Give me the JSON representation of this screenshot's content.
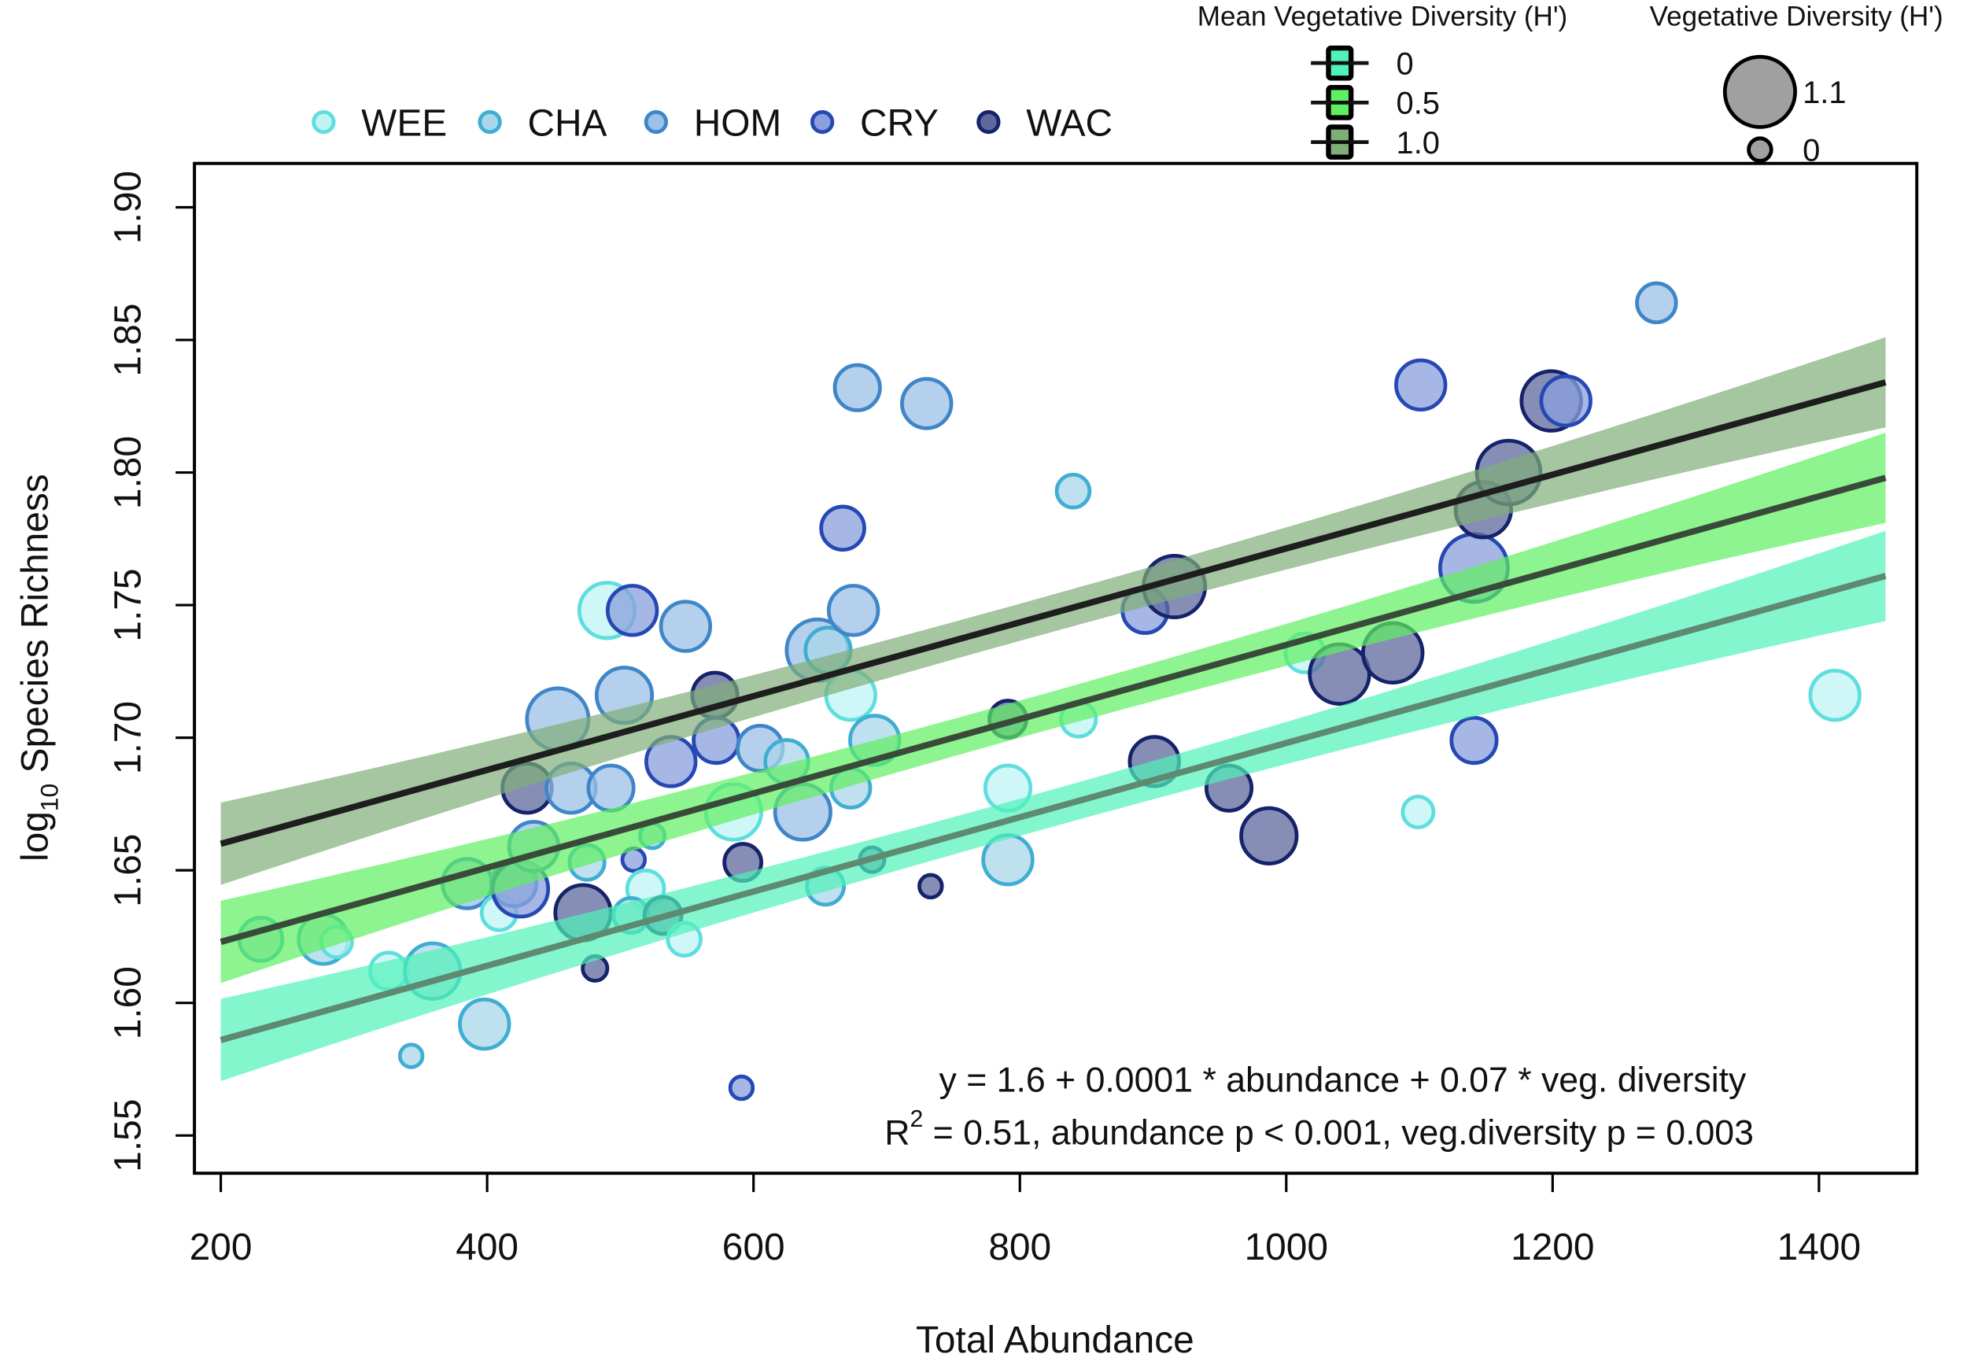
{
  "chart_data": {
    "type": "scatter",
    "xlabel": "Total Abundance",
    "ylabel_main": "log",
    "ylabel_sub": "10",
    "ylabel_rest": " Species Richness",
    "xlim": [
      200,
      1450
    ],
    "ylim": [
      1.55,
      1.9
    ],
    "x_ticks": [
      200,
      400,
      600,
      800,
      1000,
      1200,
      1400
    ],
    "x_tick_labels": [
      "200",
      "400",
      "600",
      "800",
      "1000",
      "1200",
      "1400"
    ],
    "y_ticks": [
      1.55,
      1.6,
      1.65,
      1.7,
      1.75,
      1.8,
      1.85,
      1.9
    ],
    "y_tick_labels": [
      "1.55",
      "1.60",
      "1.65",
      "1.70",
      "1.75",
      "1.80",
      "1.85",
      "1.90"
    ],
    "grid": false,
    "site_legend": {
      "placement": "top-left outside",
      "entries": [
        {
          "name": "WEE",
          "fill": "#bff4f4",
          "stroke": "#5fdede"
        },
        {
          "name": "CHA",
          "fill": "#a8d6ea",
          "stroke": "#3faed2"
        },
        {
          "name": "HOM",
          "fill": "#9cc0e6",
          "stroke": "#3f86c8"
        },
        {
          "name": "CRY",
          "fill": "#8a9fdc",
          "stroke": "#2548b4"
        },
        {
          "name": "WAC",
          "fill": "#5e689e",
          "stroke": "#16226a"
        }
      ]
    },
    "mean_veg_legend": {
      "title": "Mean Vegetative Diversity (H')",
      "entries": [
        {
          "label": "0",
          "color": "#4ff2b8"
        },
        {
          "label": "0.5",
          "color": "#5ef060"
        },
        {
          "label": "1.0",
          "color": "#7fae78"
        }
      ]
    },
    "size_legend": {
      "title": "Vegetative Diversity (H')",
      "entries": [
        {
          "label": "1.1",
          "value": 1.1
        },
        {
          "label": "0",
          "value": 0
        }
      ]
    },
    "fit_lines": [
      {
        "mean_veg": 1.0,
        "y_at_xmin": 1.66,
        "y_at_xmax": 1.834,
        "band": "#7fae78",
        "line": "#1e1e1e"
      },
      {
        "mean_veg": 0.5,
        "y_at_xmin": 1.623,
        "y_at_xmax": 1.798,
        "band": "#5ef060",
        "line": "#3a4a3a"
      },
      {
        "mean_veg": 0,
        "y_at_xmin": 1.586,
        "y_at_xmax": 1.761,
        "band": "#4ff2b8",
        "line": "#5f8a72"
      }
    ],
    "ci_halfwidth": {
      "at_ends": 0.017,
      "at_center": 0.007,
      "center_x": 800
    },
    "annotation": {
      "line1": "y = 1.6 + 0.0001 * abundance + 0.07 * veg. diversity",
      "r": "R",
      "sup": "2",
      "line2": " = 0.51, abundance p < 0.001, veg.diversity p = 0.003"
    },
    "points": [
      {
        "s": "CHA",
        "x": 230,
        "y": 1.624,
        "v": 0.5
      },
      {
        "s": "CHA",
        "x": 277,
        "y": 1.624,
        "v": 0.65
      },
      {
        "s": "WEE",
        "x": 287,
        "y": 1.623,
        "v": 0.2
      },
      {
        "s": "WEE",
        "x": 326,
        "y": 1.612,
        "v": 0.35
      },
      {
        "s": "CHA",
        "x": 359,
        "y": 1.612,
        "v": 0.8
      },
      {
        "s": "CHA",
        "x": 343,
        "y": 1.58,
        "v": 0
      },
      {
        "s": "CHA",
        "x": 398,
        "y": 1.592,
        "v": 0.65
      },
      {
        "s": "HOM",
        "x": 385,
        "y": 1.645,
        "v": 0.65
      },
      {
        "s": "WEE",
        "x": 409,
        "y": 1.634,
        "v": 0.3
      },
      {
        "s": "HOM",
        "x": 420,
        "y": 1.645,
        "v": 0.55
      },
      {
        "s": "CRY",
        "x": 425,
        "y": 1.643,
        "v": 0.8
      },
      {
        "s": "HOM",
        "x": 435,
        "y": 1.659,
        "v": 0.65
      },
      {
        "s": "WAC",
        "x": 430,
        "y": 1.681,
        "v": 0.65
      },
      {
        "s": "HOM",
        "x": 453,
        "y": 1.707,
        "v": 0.95
      },
      {
        "s": "HOM",
        "x": 463,
        "y": 1.681,
        "v": 0.65
      },
      {
        "s": "CHA",
        "x": 475,
        "y": 1.653,
        "v": 0.3
      },
      {
        "s": "WAC",
        "x": 472,
        "y": 1.634,
        "v": 0.8
      },
      {
        "s": "WAC",
        "x": 481,
        "y": 1.613,
        "v": 0.05
      },
      {
        "s": "WEE",
        "x": 490,
        "y": 1.748,
        "v": 0.8
      },
      {
        "s": "CRY",
        "x": 509,
        "y": 1.748,
        "v": 0.65
      },
      {
        "s": "HOM",
        "x": 503,
        "y": 1.716,
        "v": 0.8
      },
      {
        "s": "HOM",
        "x": 493,
        "y": 1.681,
        "v": 0.55
      },
      {
        "s": "CRY",
        "x": 510,
        "y": 1.654,
        "v": 0
      },
      {
        "s": "WEE",
        "x": 519,
        "y": 1.643,
        "v": 0.35
      },
      {
        "s": "CHA",
        "x": 508,
        "y": 1.633,
        "v": 0.3
      },
      {
        "s": "CHA",
        "x": 524,
        "y": 1.663,
        "v": 0.05
      },
      {
        "s": "WAC",
        "x": 532,
        "y": 1.633,
        "v": 0.35
      },
      {
        "s": "WEE",
        "x": 548,
        "y": 1.624,
        "v": 0.25
      },
      {
        "s": "HOM",
        "x": 549,
        "y": 1.742,
        "v": 0.65
      },
      {
        "s": "CRY",
        "x": 538,
        "y": 1.691,
        "v": 0.65
      },
      {
        "s": "WAC",
        "x": 571,
        "y": 1.716,
        "v": 0.55
      },
      {
        "s": "CRY",
        "x": 572,
        "y": 1.699,
        "v": 0.55
      },
      {
        "s": "WEE",
        "x": 585,
        "y": 1.672,
        "v": 0.8
      },
      {
        "s": "HOM",
        "x": 605,
        "y": 1.696,
        "v": 0.55
      },
      {
        "s": "CHA",
        "x": 625,
        "y": 1.691,
        "v": 0.5
      },
      {
        "s": "WAC",
        "x": 592,
        "y": 1.653,
        "v": 0.35
      },
      {
        "s": "CRY",
        "x": 591,
        "y": 1.568,
        "v": 0
      },
      {
        "s": "HOM",
        "x": 637,
        "y": 1.672,
        "v": 0.8
      },
      {
        "s": "HOM",
        "x": 648,
        "y": 1.733,
        "v": 0.95
      },
      {
        "s": "CHA",
        "x": 656,
        "y": 1.733,
        "v": 0.55
      },
      {
        "s": "CHA",
        "x": 654,
        "y": 1.644,
        "v": 0.35
      },
      {
        "s": "CRY",
        "x": 667,
        "y": 1.779,
        "v": 0.5
      },
      {
        "s": "HOM",
        "x": 678,
        "y": 1.832,
        "v": 0.55
      },
      {
        "s": "HOM",
        "x": 675,
        "y": 1.748,
        "v": 0.65
      },
      {
        "s": "WEE",
        "x": 673,
        "y": 1.716,
        "v": 0.65
      },
      {
        "s": "CHA",
        "x": 673,
        "y": 1.681,
        "v": 0.4
      },
      {
        "s": "CHA",
        "x": 691,
        "y": 1.699,
        "v": 0.65
      },
      {
        "s": "WAC",
        "x": 689,
        "y": 1.654,
        "v": 0.05
      },
      {
        "s": "HOM",
        "x": 730,
        "y": 1.826,
        "v": 0.65
      },
      {
        "s": "WAC",
        "x": 733,
        "y": 1.644,
        "v": 0
      },
      {
        "s": "WAC",
        "x": 791,
        "y": 1.707,
        "v": 0.35
      },
      {
        "s": "WEE",
        "x": 791,
        "y": 1.681,
        "v": 0.55
      },
      {
        "s": "CHA",
        "x": 791,
        "y": 1.654,
        "v": 0.65
      },
      {
        "s": "CHA",
        "x": 840,
        "y": 1.793,
        "v": 0.25
      },
      {
        "s": "WEE",
        "x": 844,
        "y": 1.707,
        "v": 0.3
      },
      {
        "s": "CRY",
        "x": 894,
        "y": 1.748,
        "v": 0.55
      },
      {
        "s": "WAC",
        "x": 916,
        "y": 1.757,
        "v": 0.95
      },
      {
        "s": "WAC",
        "x": 901,
        "y": 1.691,
        "v": 0.65
      },
      {
        "s": "WAC",
        "x": 957,
        "y": 1.681,
        "v": 0.55
      },
      {
        "s": "WAC",
        "x": 987,
        "y": 1.663,
        "v": 0.8
      },
      {
        "s": "WEE",
        "x": 1014,
        "y": 1.732,
        "v": 0.4
      },
      {
        "s": "WAC",
        "x": 1040,
        "y": 1.724,
        "v": 0.9
      },
      {
        "s": "WAC",
        "x": 1080,
        "y": 1.732,
        "v": 0.9
      },
      {
        "s": "CRY",
        "x": 1101,
        "y": 1.833,
        "v": 0.65
      },
      {
        "s": "WEE",
        "x": 1099,
        "y": 1.672,
        "v": 0.2
      },
      {
        "s": "CRY",
        "x": 1141,
        "y": 1.699,
        "v": 0.55
      },
      {
        "s": "CRY",
        "x": 1141,
        "y": 1.764,
        "v": 1.1
      },
      {
        "s": "WAC",
        "x": 1148,
        "y": 1.786,
        "v": 0.8
      },
      {
        "s": "WAC",
        "x": 1167,
        "y": 1.8,
        "v": 1.0
      },
      {
        "s": "WAC",
        "x": 1199,
        "y": 1.827,
        "v": 0.9
      },
      {
        "s": "CRY",
        "x": 1210,
        "y": 1.827,
        "v": 0.65
      },
      {
        "s": "HOM",
        "x": 1278,
        "y": 1.864,
        "v": 0.4
      },
      {
        "s": "WEE",
        "x": 1412,
        "y": 1.716,
        "v": 0.65
      }
    ]
  }
}
